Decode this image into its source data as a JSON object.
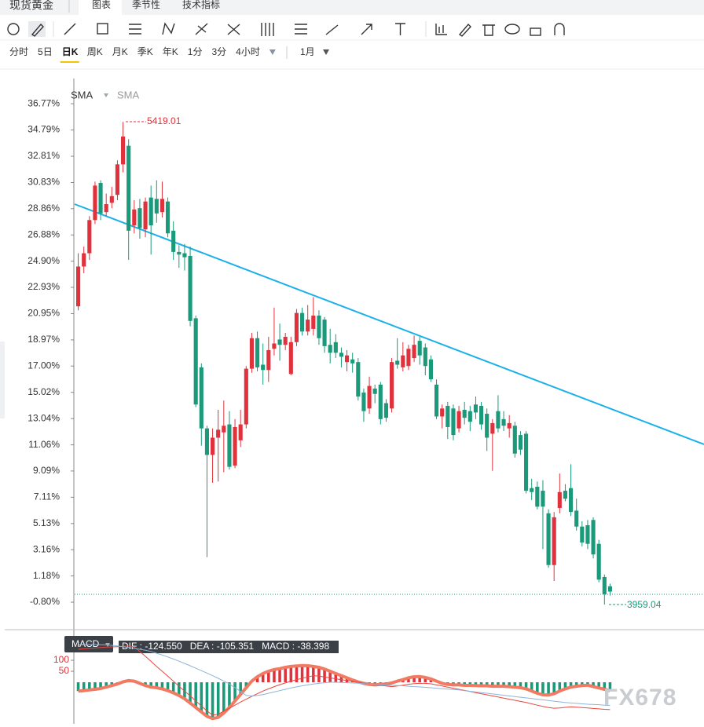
{
  "header": {
    "title": "现货黄金",
    "tabs": [
      "图表",
      "季节性",
      "技术指标"
    ]
  },
  "timeframes": {
    "items": [
      "分时",
      "5日",
      "日K",
      "周K",
      "月K",
      "季K",
      "年K",
      "1分",
      "3分",
      "4小时"
    ],
    "period": "1月"
  },
  "indicators": {
    "main": [
      "SMA",
      "SMA"
    ],
    "sub": "MACD"
  },
  "watermark": "FX678",
  "chart_data": [
    {
      "type": "candlestick",
      "up_color": "#e0323c",
      "down_color": "#1a9a7a",
      "annotations": [
        "5419.01",
        "3959.04"
      ],
      "ylim": [
        -2.75,
        38.67
      ],
      "yticks": [
        {
          "value": 36.77,
          "label": "36.77%"
        },
        {
          "value": 34.79,
          "label": "34.79%"
        },
        {
          "value": 32.81,
          "label": "32.81%"
        },
        {
          "value": 30.83,
          "label": "30.83%"
        },
        {
          "value": 28.86,
          "label": "28.86%"
        },
        {
          "value": 26.88,
          "label": "26.88%"
        },
        {
          "value": 24.9,
          "label": "24.90%"
        },
        {
          "value": 22.93,
          "label": "22.93%"
        },
        {
          "value": 20.95,
          "label": "20.95%"
        },
        {
          "value": 18.97,
          "label": "18.97%"
        },
        {
          "value": 17,
          "label": "17.00%"
        },
        {
          "value": 15.02,
          "label": "15.02%"
        },
        {
          "value": 13.04,
          "label": "13.04%"
        },
        {
          "value": 11.06,
          "label": "11.06%"
        },
        {
          "value": 9.09,
          "label": "9.09%"
        },
        {
          "value": 7.11,
          "label": "7.11%"
        },
        {
          "value": 5.13,
          "label": "5.13%"
        },
        {
          "value": 3.16,
          "label": "3.16%"
        },
        {
          "value": 1.18,
          "label": "1.18%"
        },
        {
          "value": -0.8,
          "label": "-0.80%"
        }
      ],
      "open": [
        21.5,
        24.5,
        25.5,
        28.0,
        30.8,
        28.6,
        29.3,
        29.9,
        32.2,
        33.6,
        27.6,
        28.9,
        27.3,
        29.7,
        29.6,
        28.6,
        29.4,
        27.2,
        25.6,
        25.5,
        25.3,
        20.6,
        16.9,
        12.3,
        10.3,
        11.6,
        12.0,
        12.6,
        9.5,
        11.4,
        12.6,
        16.8,
        19.1,
        17.1,
        16.7,
        18.3,
        19.0,
        18.6,
        16.4,
        18.8,
        21.0,
        19.6,
        19.8,
        20.8,
        20.5,
        18.6,
        18.8,
        18.0,
        17.3,
        17.5,
        17.3,
        15.0,
        13.8,
        15.3,
        15.6,
        14.2,
        13.8,
        17.4,
        16.9,
        17.0,
        17.6,
        18.9,
        18.4,
        17.5,
        15.6,
        13.2,
        14.0,
        13.8,
        12.3,
        13.7,
        13.6,
        14.1,
        14.0,
        13.4,
        11.9,
        13.6,
        13.0,
        12.3,
        12.5,
        11.8,
        11.9,
        7.8,
        7.9,
        7.6,
        5.9,
        2.0,
        6.3,
        7.6,
        7.8,
        6.1,
        4.9,
        5.0,
        5.4,
        3.6,
        1.1,
        0.4
      ],
      "high": [
        25.5,
        26,
        28.3,
        30.9,
        31,
        30,
        30.5,
        32.5,
        35.4,
        34.1,
        29.5,
        29.6,
        29.7,
        30.6,
        31.0,
        30.9,
        29.7,
        27.9,
        26.1,
        26.2,
        26.0,
        20.8,
        17.2,
        12.5,
        12.3,
        13.7,
        14.4,
        13.6,
        13.0,
        13.7,
        17.0,
        19.5,
        19.6,
        18.7,
        19.2,
        21.4,
        20.2,
        19.5,
        19.2,
        21.3,
        21.4,
        21.6,
        22.2,
        21.2,
        20.7,
        19.8,
        19.4,
        18.4,
        18.2,
        18.0,
        17.6,
        15.3,
        16.2,
        15.6,
        15.8,
        14.5,
        17.6,
        19.1,
        18.8,
        18.6,
        19.3,
        19.2,
        18.7,
        17.8,
        16.0,
        14.1,
        14.3,
        14.1,
        14.0,
        14.3,
        14.0,
        14.7,
        14.3,
        13.8,
        13.0,
        14.8,
        13.6,
        13.3,
        12.8,
        12.1,
        12.1,
        8.5,
        8.3,
        8.4,
        6.2,
        6.0,
        8.9,
        8.1,
        9.6,
        7.0,
        5.3,
        5.4,
        5.6,
        3.9,
        1.3,
        0.6
      ],
      "low": [
        21.2,
        24,
        25,
        27.7,
        28,
        28.3,
        28.9,
        29.5,
        31.6,
        25.0,
        27.0,
        26.6,
        26.7,
        25.4,
        27.8,
        28.2,
        26.7,
        25.0,
        24.4,
        24.2,
        20.0,
        13.9,
        11.0,
        2.6,
        8.2,
        8.3,
        9.0,
        9.2,
        9.3,
        10.9,
        12.3,
        16.5,
        16.6,
        15.6,
        15.8,
        17.8,
        17.4,
        18.2,
        16.3,
        18.5,
        19.3,
        19.3,
        19.3,
        18.6,
        18.0,
        17.2,
        17.6,
        16.9,
        16.6,
        16.5,
        14.4,
        12.8,
        13.4,
        14.2,
        12.6,
        12.8,
        13.5,
        16.8,
        16.6,
        16.7,
        17.3,
        17.1,
        16.3,
        15.8,
        13.0,
        12.3,
        11.5,
        11.4,
        12.0,
        12.6,
        12.1,
        13.0,
        12.2,
        10.6,
        9.1,
        12.0,
        12.1,
        11.6,
        10.1,
        10.3,
        7.4,
        6.9,
        6.2,
        3.2,
        1.8,
        0.8,
        5.9,
        6.8,
        5.7,
        4.6,
        3.4,
        3.2,
        2.5,
        0.7,
        -0.98,
        -0.3
      ],
      "close": [
        24.5,
        25.5,
        28.0,
        30.6,
        28.5,
        29.2,
        29.8,
        32.2,
        34.3,
        27.2,
        28.8,
        27.4,
        29.4,
        27.6,
        28.5,
        29.6,
        27.0,
        25.6,
        25.4,
        25.2,
        20.4,
        14.1,
        12.3,
        10.3,
        11.6,
        12.2,
        12.5,
        9.4,
        12.4,
        12.6,
        16.8,
        19.1,
        16.9,
        16.7,
        18.2,
        18.7,
        18.6,
        19.2,
        18.8,
        21.0,
        19.6,
        20.5,
        20.8,
        19.1,
        18.5,
        18.0,
        18.0,
        17.7,
        17.8,
        17.2,
        14.7,
        13.6,
        15.5,
        14.9,
        13.0,
        13.1,
        17.3,
        17.1,
        17.8,
        18.3,
        18.6,
        17.8,
        17.0,
        16.0,
        13.2,
        13.8,
        12.4,
        11.8,
        13.6,
        13.1,
        12.8,
        13.5,
        12.6,
        11.6,
        12.7,
        12.3,
        12.5,
        12.7,
        10.4,
        10.7,
        7.6,
        7.5,
        6.4,
        6.4,
        2.0,
        5.6,
        7.5,
        7.0,
        6.0,
        4.9,
        3.7,
        3.6,
        2.8,
        0.9,
        -0.2,
        0.0
      ]
    },
    {
      "type": "macd",
      "readout": "DIF : -124.550   DEA : -105.351   MACD : -38.398",
      "ylim": [
        -182,
        218
      ],
      "yticks": [
        50,
        100
      ],
      "tick_color": "#e0323c",
      "positive_color": "#e0323c",
      "negative_color": "#1a9a7a",
      "outline_color": "#f07a62",
      "series": [
        {
          "name": "MACD",
          "values": [
            -40,
            -38,
            -35,
            -32,
            -28,
            -22,
            -15,
            -8,
            2,
            8,
            5,
            -5,
            -15,
            -22,
            -25,
            -30,
            -38,
            -48,
            -60,
            -75,
            -95,
            -115,
            -135,
            -155,
            -165,
            -160,
            -140,
            -115,
            -85,
            -55,
            -25,
            5,
            25,
            40,
            50,
            58,
            62,
            68,
            72,
            74,
            76,
            75,
            72,
            68,
            60,
            50,
            40,
            30,
            20,
            10,
            2,
            -5,
            -10,
            -12,
            -10,
            -8,
            -3,
            5,
            12,
            20,
            25,
            26,
            22,
            15,
            5,
            -5,
            -10,
            -12,
            -12,
            -14,
            -14,
            -15,
            -16,
            -16,
            -18,
            -18,
            -18,
            -20,
            -22,
            -25,
            -30,
            -40,
            -50,
            -57,
            -58,
            -52,
            -40,
            -30,
            -22,
            -18,
            -15,
            -13,
            -20,
            -26,
            -32,
            -38.398
          ]
        },
        {
          "name": "DIF",
          "color": "#e8473f",
          "values": [
            150,
            152,
            154,
            156,
            158,
            160,
            161,
            162,
            163,
            165,
            160,
            140,
            118,
            95,
            72,
            50,
            28,
            5,
            -18,
            -40,
            -62,
            -85,
            -108,
            -130,
            -150,
            -145,
            -132,
            -118,
            -104,
            -90,
            -77,
            -64,
            -52,
            -40,
            -30,
            -20,
            -11,
            -3,
            5,
            12,
            18,
            24,
            30,
            28,
            24,
            20,
            16,
            12,
            8,
            4,
            0,
            -4,
            -8,
            -11,
            -14,
            -17,
            -20,
            -17,
            -13,
            -9,
            -6,
            -5,
            -5,
            -7,
            -12,
            -17,
            -22,
            -27,
            -32,
            -37,
            -42,
            -47,
            -52,
            -57,
            -62,
            -67,
            -72,
            -77,
            -82,
            -87,
            -92,
            -98,
            -104,
            -110,
            -115,
            -118,
            -117,
            -114,
            -112,
            -113,
            -115,
            -117,
            -119,
            -121,
            -123,
            -124.55
          ]
        },
        {
          "name": "DEA",
          "color": "#8fb3d9",
          "values": [
            170,
            171,
            172,
            172,
            171,
            170,
            168,
            165,
            162,
            158,
            154,
            150,
            146,
            140,
            132,
            124,
            115,
            106,
            96,
            86,
            75,
            64,
            53,
            42,
            30,
            18,
            6,
            -8,
            -24,
            -42,
            -60,
            -62,
            -60,
            -56,
            -50,
            -44,
            -38,
            -32,
            -26,
            -21,
            -16,
            -12,
            -8,
            -5,
            -2,
            0,
            0,
            -1,
            -2,
            -3,
            -4,
            -6,
            -8,
            -10,
            -12,
            -13,
            -14,
            -15,
            -16,
            -18,
            -20,
            -21,
            -23,
            -25,
            -27,
            -29,
            -31,
            -33,
            -35,
            -38,
            -41,
            -44,
            -47,
            -50,
            -53,
            -56,
            -59,
            -62,
            -65,
            -68,
            -71,
            -74,
            -77,
            -80,
            -83,
            -86,
            -89,
            -92,
            -94,
            -96,
            -98,
            -100,
            -101,
            -102,
            -104,
            -105.351
          ]
        }
      ]
    }
  ]
}
